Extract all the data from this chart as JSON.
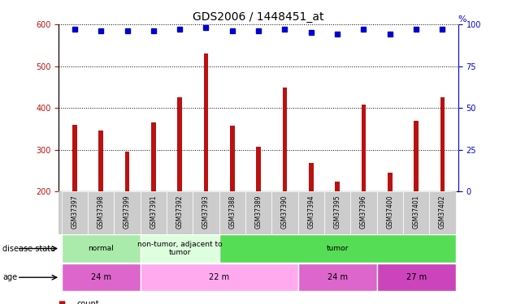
{
  "title": "GDS2006 / 1448451_at",
  "samples": [
    "GSM37397",
    "GSM37398",
    "GSM37399",
    "GSM37391",
    "GSM37392",
    "GSM37393",
    "GSM37388",
    "GSM37389",
    "GSM37390",
    "GSM37394",
    "GSM37395",
    "GSM37396",
    "GSM37400",
    "GSM37401",
    "GSM37402"
  ],
  "counts": [
    360,
    345,
    295,
    365,
    425,
    530,
    358,
    308,
    448,
    268,
    223,
    408,
    245,
    370,
    425
  ],
  "percentiles": [
    97,
    96,
    96,
    96,
    97,
    98,
    96,
    96,
    97,
    95,
    94,
    97,
    94,
    97,
    97
  ],
  "ylim_left": [
    200,
    600
  ],
  "ylim_right": [
    0,
    100
  ],
  "yticks_left": [
    200,
    300,
    400,
    500,
    600
  ],
  "yticks_right": [
    0,
    25,
    50,
    75,
    100
  ],
  "bar_color": "#bb1111",
  "dot_color": "#0000cc",
  "bg_color": "#ffffff",
  "grid_color": "#000000",
  "xticklabel_bg": "#cccccc",
  "disease_state_groups": [
    {
      "label": "normal",
      "start": 0,
      "end": 3,
      "color": "#aaeaaa"
    },
    {
      "label": "non-tumor, adjacent to\ntumor",
      "start": 3,
      "end": 6,
      "color": "#ddffdd"
    },
    {
      "label": "tumor",
      "start": 6,
      "end": 15,
      "color": "#55dd55"
    }
  ],
  "age_groups": [
    {
      "label": "24 m",
      "start": 0,
      "end": 3,
      "color": "#dd66cc"
    },
    {
      "label": "22 m",
      "start": 3,
      "end": 9,
      "color": "#ffaaee"
    },
    {
      "label": "24 m",
      "start": 9,
      "end": 12,
      "color": "#dd66cc"
    },
    {
      "label": "27 m",
      "start": 12,
      "end": 15,
      "color": "#cc44bb"
    }
  ],
  "bar_width": 0.18,
  "dot_size": 5,
  "label_fontsize": 7,
  "tick_fontsize": 7,
  "title_fontsize": 10
}
